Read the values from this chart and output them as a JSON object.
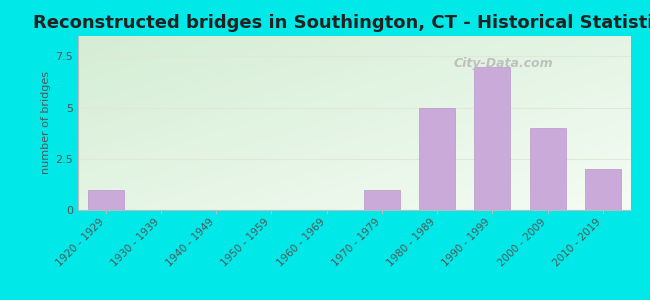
{
  "title": "Reconstructed bridges in Southington, CT - Historical Statistics",
  "ylabel": "number of bridges",
  "categories": [
    "1920 - 1929",
    "1930 - 1939",
    "1940 - 1949",
    "1950 - 1959",
    "1960 - 1969",
    "1970 - 1979",
    "1980 - 1989",
    "1990 - 1999",
    "2000 - 2009",
    "2010 - 2019"
  ],
  "values": [
    1,
    0,
    0,
    0,
    0,
    1,
    5,
    7,
    4,
    2
  ],
  "bar_color": "#c9aad8",
  "bar_edge_color": "#b898cc",
  "background_outer": "#00e8e8",
  "background_inner_topleft": "#d4edd4",
  "background_inner_bottomright": "#f5fcf5",
  "grid_color": "#e0e8d8",
  "yticks": [
    0,
    2.5,
    5,
    7.5
  ],
  "ylim": [
    0,
    8.5
  ],
  "watermark": "City-Data.com",
  "title_fontsize": 13,
  "axis_label_fontsize": 8,
  "tick_fontsize": 7.5
}
